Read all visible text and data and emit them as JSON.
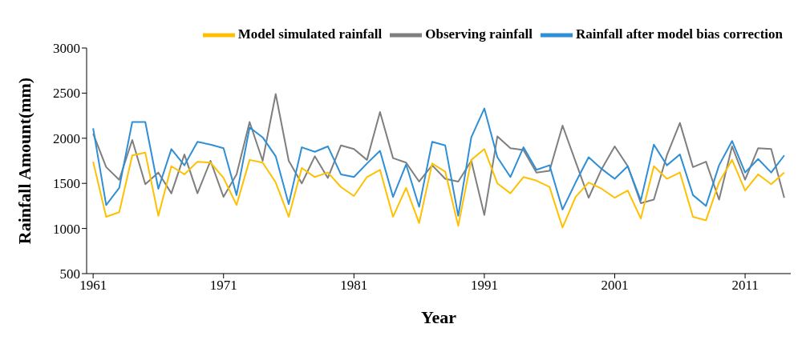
{
  "chart_data": {
    "type": "line",
    "xlabel": "Year",
    "ylabel": "Rainfall Amount(mm)",
    "x": [
      1961,
      1962,
      1963,
      1964,
      1965,
      1966,
      1967,
      1968,
      1969,
      1970,
      1971,
      1972,
      1973,
      1974,
      1975,
      1976,
      1977,
      1978,
      1979,
      1980,
      1981,
      1982,
      1983,
      1984,
      1985,
      1986,
      1987,
      1988,
      1989,
      1990,
      1991,
      1992,
      1993,
      1994,
      1995,
      1996,
      1997,
      1998,
      1999,
      2000,
      2001,
      2002,
      2003,
      2004,
      2005,
      2006,
      2007,
      2008,
      2009,
      2010,
      2011,
      2012,
      2013,
      2014
    ],
    "series": [
      {
        "name": "Observing rainfall",
        "color": "#7f7f7f",
        "values": [
          2050,
          1680,
          1540,
          1980,
          1490,
          1620,
          1390,
          1820,
          1390,
          1750,
          1350,
          1600,
          2180,
          1750,
          2490,
          1750,
          1500,
          1800,
          1560,
          1920,
          1880,
          1760,
          2290,
          1780,
          1730,
          1520,
          1700,
          1550,
          1520,
          1750,
          1150,
          2020,
          1890,
          1870,
          1620,
          1640,
          2140,
          1740,
          1340,
          1660,
          1910,
          1690,
          1280,
          1320,
          1810,
          2170,
          1680,
          1740,
          1320,
          1910,
          1540,
          1890,
          1880,
          1340
        ]
      },
      {
        "name": "Model simulated rainfall",
        "color": "#ffc000",
        "values": [
          1740,
          1130,
          1180,
          1810,
          1840,
          1140,
          1690,
          1600,
          1740,
          1730,
          1560,
          1260,
          1760,
          1730,
          1510,
          1130,
          1670,
          1570,
          1620,
          1460,
          1360,
          1570,
          1650,
          1130,
          1450,
          1060,
          1720,
          1630,
          1030,
          1760,
          1880,
          1500,
          1390,
          1570,
          1530,
          1460,
          1010,
          1350,
          1510,
          1440,
          1340,
          1420,
          1110,
          1690,
          1550,
          1620,
          1130,
          1090,
          1510,
          1760,
          1420,
          1600,
          1490,
          1620
        ]
      },
      {
        "name": "Rainfall after model bias correction",
        "color": "#2e8fd6",
        "values": [
          2110,
          1260,
          1450,
          2180,
          2180,
          1440,
          1880,
          1700,
          1960,
          1930,
          1890,
          1370,
          2120,
          2010,
          1800,
          1270,
          1900,
          1850,
          1910,
          1600,
          1570,
          1720,
          1860,
          1350,
          1710,
          1240,
          1960,
          1920,
          1140,
          2010,
          2330,
          1790,
          1570,
          1900,
          1650,
          1700,
          1210,
          1510,
          1790,
          1660,
          1550,
          1690,
          1310,
          1930,
          1700,
          1820,
          1370,
          1250,
          1700,
          1970,
          1620,
          1770,
          1620,
          1810
        ]
      }
    ],
    "xlim": [
      1960.5,
      2014.5
    ],
    "xticks": [
      1961,
      1971,
      1981,
      1991,
      2001,
      2011
    ],
    "ylim": [
      500,
      3000
    ],
    "yticks": [
      500,
      1000,
      1500,
      2000,
      2500,
      3000
    ],
    "grid": false,
    "legend": "top",
    "marker": "none",
    "line_style": "solid"
  }
}
